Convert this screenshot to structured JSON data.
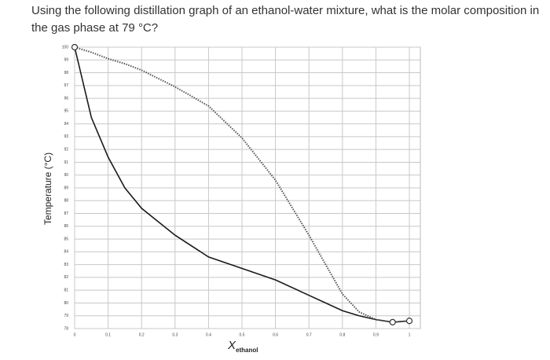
{
  "question_lines": [
    "Using the following distillation graph of an ethanol-water mixture, what is the molar composition in",
    "the gas phase at 79 °C?"
  ],
  "chart_data": {
    "type": "line",
    "ylabel": "Temperature (°C)",
    "xlabel": {
      "symbol": "X",
      "subscript": "ethanol"
    },
    "x": [
      0,
      0.05,
      0.1,
      0.15,
      0.2,
      0.3,
      0.4,
      0.5,
      0.6,
      0.7,
      0.8,
      0.85,
      0.9,
      0.95,
      1.0
    ],
    "series": [
      {
        "color": "#1a1a1a",
        "style": "solid",
        "values": [
          100,
          94.5,
          91.4,
          89,
          87.4,
          85.3,
          83.6,
          82.7,
          81.8,
          80.6,
          79.4,
          79,
          78.7,
          78.5,
          78.6
        ]
      },
      {
        "color": "#555555",
        "style": "dotted",
        "values": [
          100,
          99.6,
          99.1,
          98.7,
          98.2,
          96.9,
          95.4,
          92.9,
          89.6,
          85.3,
          80.7,
          79.3,
          78.7,
          78.5,
          78.6
        ]
      }
    ],
    "xlim": [
      0,
      1
    ],
    "ylim": [
      78,
      100
    ],
    "xticks": [
      0,
      0.1,
      0.2,
      0.3,
      0.4,
      0.5,
      0.6,
      0.7,
      0.8,
      0.9,
      1
    ],
    "yticks": [
      78,
      79,
      80,
      81,
      82,
      83,
      84,
      85,
      86,
      87,
      88,
      89,
      90,
      91,
      92,
      93,
      94,
      95,
      96,
      97,
      98,
      99,
      100
    ],
    "grid": true
  }
}
